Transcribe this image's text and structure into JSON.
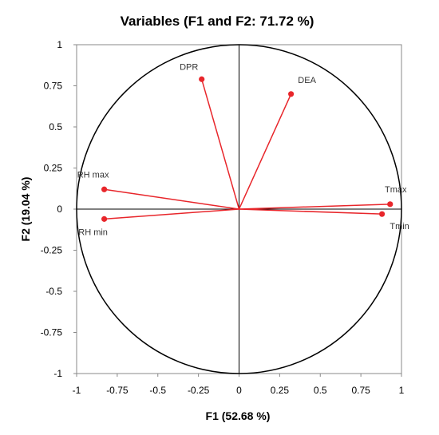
{
  "chart_data": {
    "type": "scatter",
    "title": "Variables (F1 and F2: 71.72 %)",
    "xlabel": "F1 (52.68 %)",
    "ylabel": "F2 (19.04 %)",
    "xlim": [
      -1,
      1
    ],
    "ylim": [
      -1,
      1
    ],
    "x_ticks": [
      "-1",
      "-0.75",
      "-0.5",
      "-0.25",
      "0",
      "0.25",
      "0.5",
      "0.75",
      "1"
    ],
    "y_ticks": [
      "1",
      "0.75",
      "0.5",
      "0.25",
      "0",
      "-0.25",
      "-0.5",
      "-0.75",
      "-1"
    ],
    "grid": false,
    "correlation_circle": true,
    "colors": {
      "vector": "#e8262b",
      "circle": "#000000",
      "axis": "#000000",
      "frame": "#888888"
    },
    "points": [
      {
        "label": "DPR",
        "x": -0.23,
        "y": 0.79
      },
      {
        "label": "DEA",
        "x": 0.32,
        "y": 0.7
      },
      {
        "label": "RH max",
        "x": -0.83,
        "y": 0.12
      },
      {
        "label": "RH min",
        "x": -0.83,
        "y": -0.06
      },
      {
        "label": "Tmax",
        "x": 0.93,
        "y": 0.03
      },
      {
        "label": "Tmin",
        "x": 0.88,
        "y": -0.03
      }
    ]
  }
}
